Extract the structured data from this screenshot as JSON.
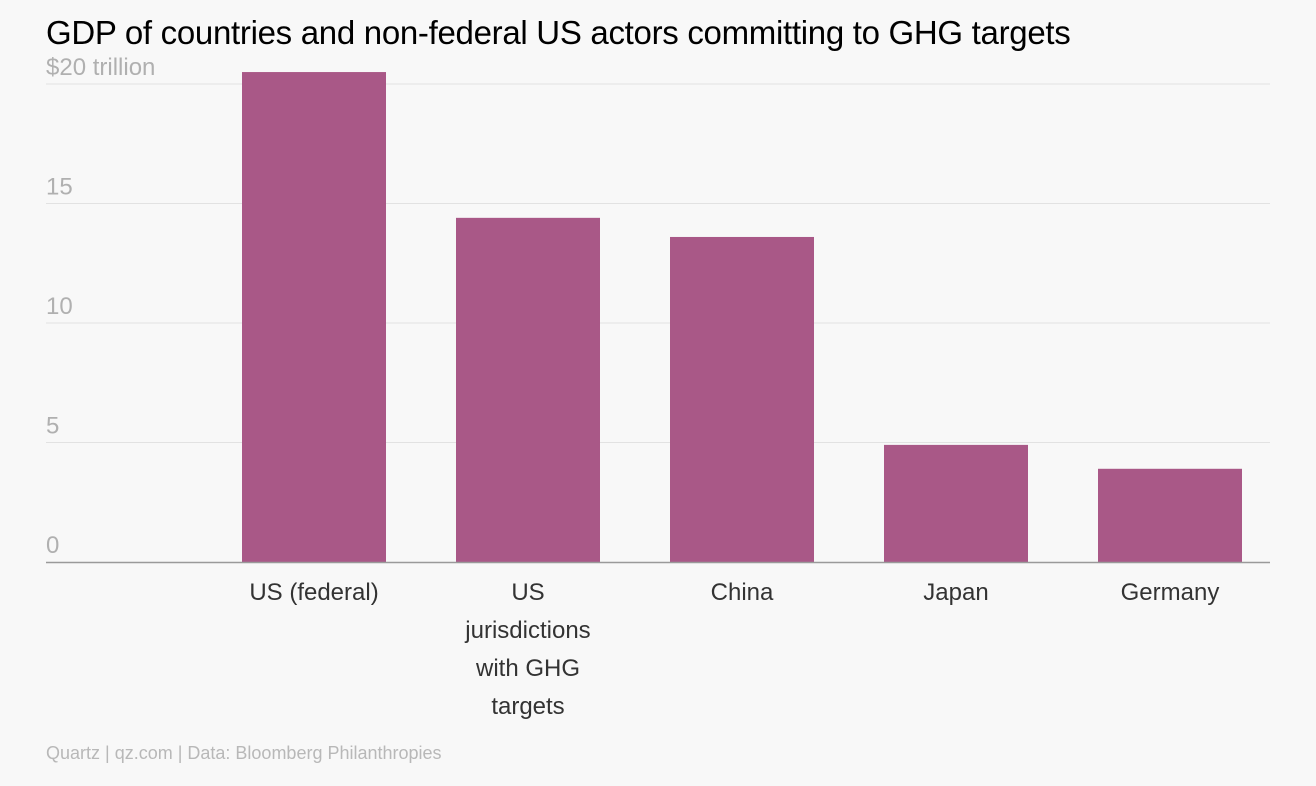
{
  "title": "GDP of countries and non-federal US actors committing to GHG targets",
  "footer": "Quartz | qz.com | Data: Bloomberg Philanthropies",
  "colors": {
    "bar": "#a95887",
    "grid": "#e2e2e2",
    "axis": "#9a9a9a",
    "tick_label": "#b0b0b0",
    "category_label": "#333333",
    "background": "#f8f8f8"
  },
  "chart_data": {
    "type": "bar",
    "title": "GDP of countries and non-federal US actors committing to GHG targets",
    "categories": [
      [
        "US (federal)"
      ],
      [
        "US",
        "jurisdictions",
        "with GHG",
        "targets"
      ],
      [
        "China"
      ],
      [
        "Japan"
      ],
      [
        "Germany"
      ]
    ],
    "values": [
      20.5,
      14.4,
      13.6,
      4.9,
      3.9
    ],
    "ylim": [
      0,
      20
    ],
    "yticks": [
      0,
      5,
      10,
      15,
      20
    ],
    "ytick_labels": [
      "0",
      "5",
      "10",
      "15",
      "$20 trillion"
    ],
    "xlabel": "",
    "ylabel": "",
    "grid": true
  }
}
